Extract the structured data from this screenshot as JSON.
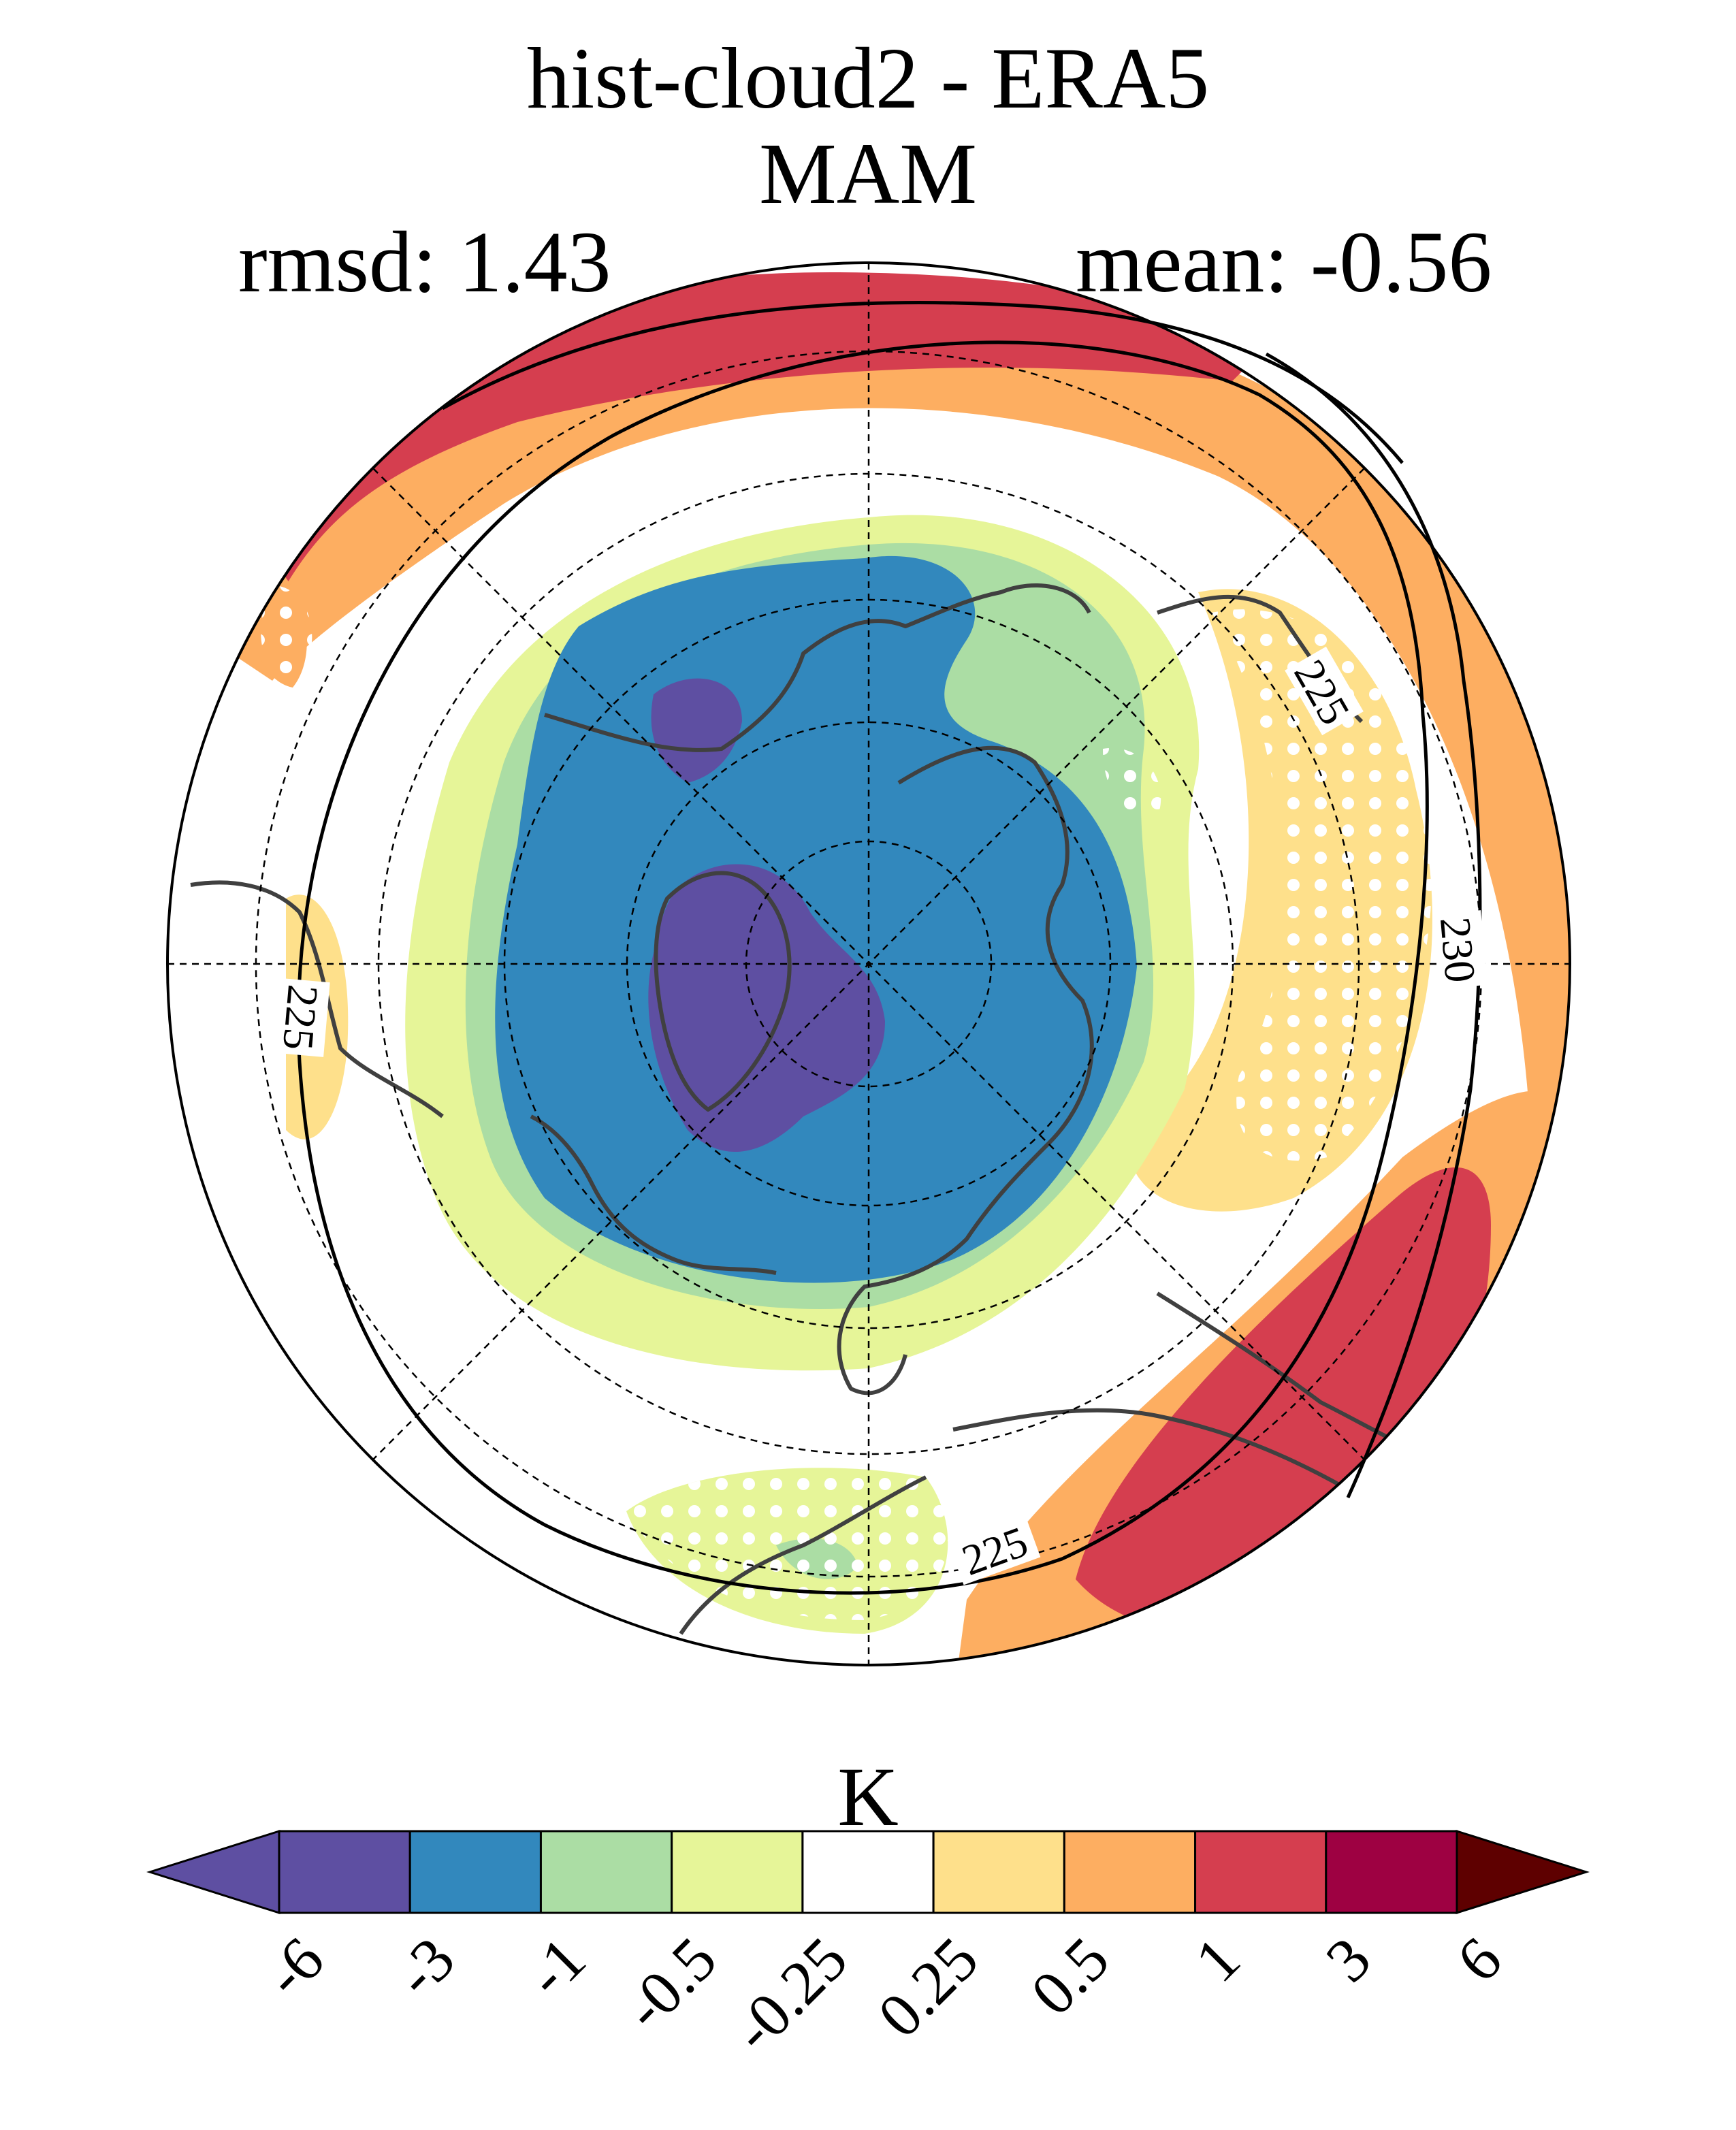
{
  "figure": {
    "title_line1": "hist-cloud2 - ERA5",
    "title_line2": "MAM",
    "rmsd_label": "rmsd: 1.43",
    "mean_label": "mean: -0.56"
  },
  "map": {
    "projection": "north-polar-stereographic",
    "contour_labels": [
      "225",
      "230",
      "225",
      "225"
    ],
    "colors": {
      "level_lt_-3": "#5e4fa2",
      "level_-3_-1": "#3288bd",
      "level_-1_-0.5": "#abdda4",
      "level_-0.5_-0.25": "#e6f598",
      "level_-0.25_0.25": "#ffffff",
      "level_0.25_0.5": "#fee08b",
      "level_0.5_1": "#fdae61",
      "level_1_3": "#d53e4f",
      "coast": "#404040"
    }
  },
  "colorbar": {
    "unit": "K",
    "tick_labels": [
      "-6",
      "-3",
      "-1",
      "-0.5",
      "-0.25",
      "0.25",
      "0.5",
      "1",
      "3",
      "6"
    ],
    "colors": [
      "#5e4fa2",
      "#5e4fa2",
      "#3288bd",
      "#abdda4",
      "#e6f598",
      "#ffffff",
      "#fee08b",
      "#fdae61",
      "#d53e4f",
      "#9e0142",
      "#5e0000"
    ]
  }
}
